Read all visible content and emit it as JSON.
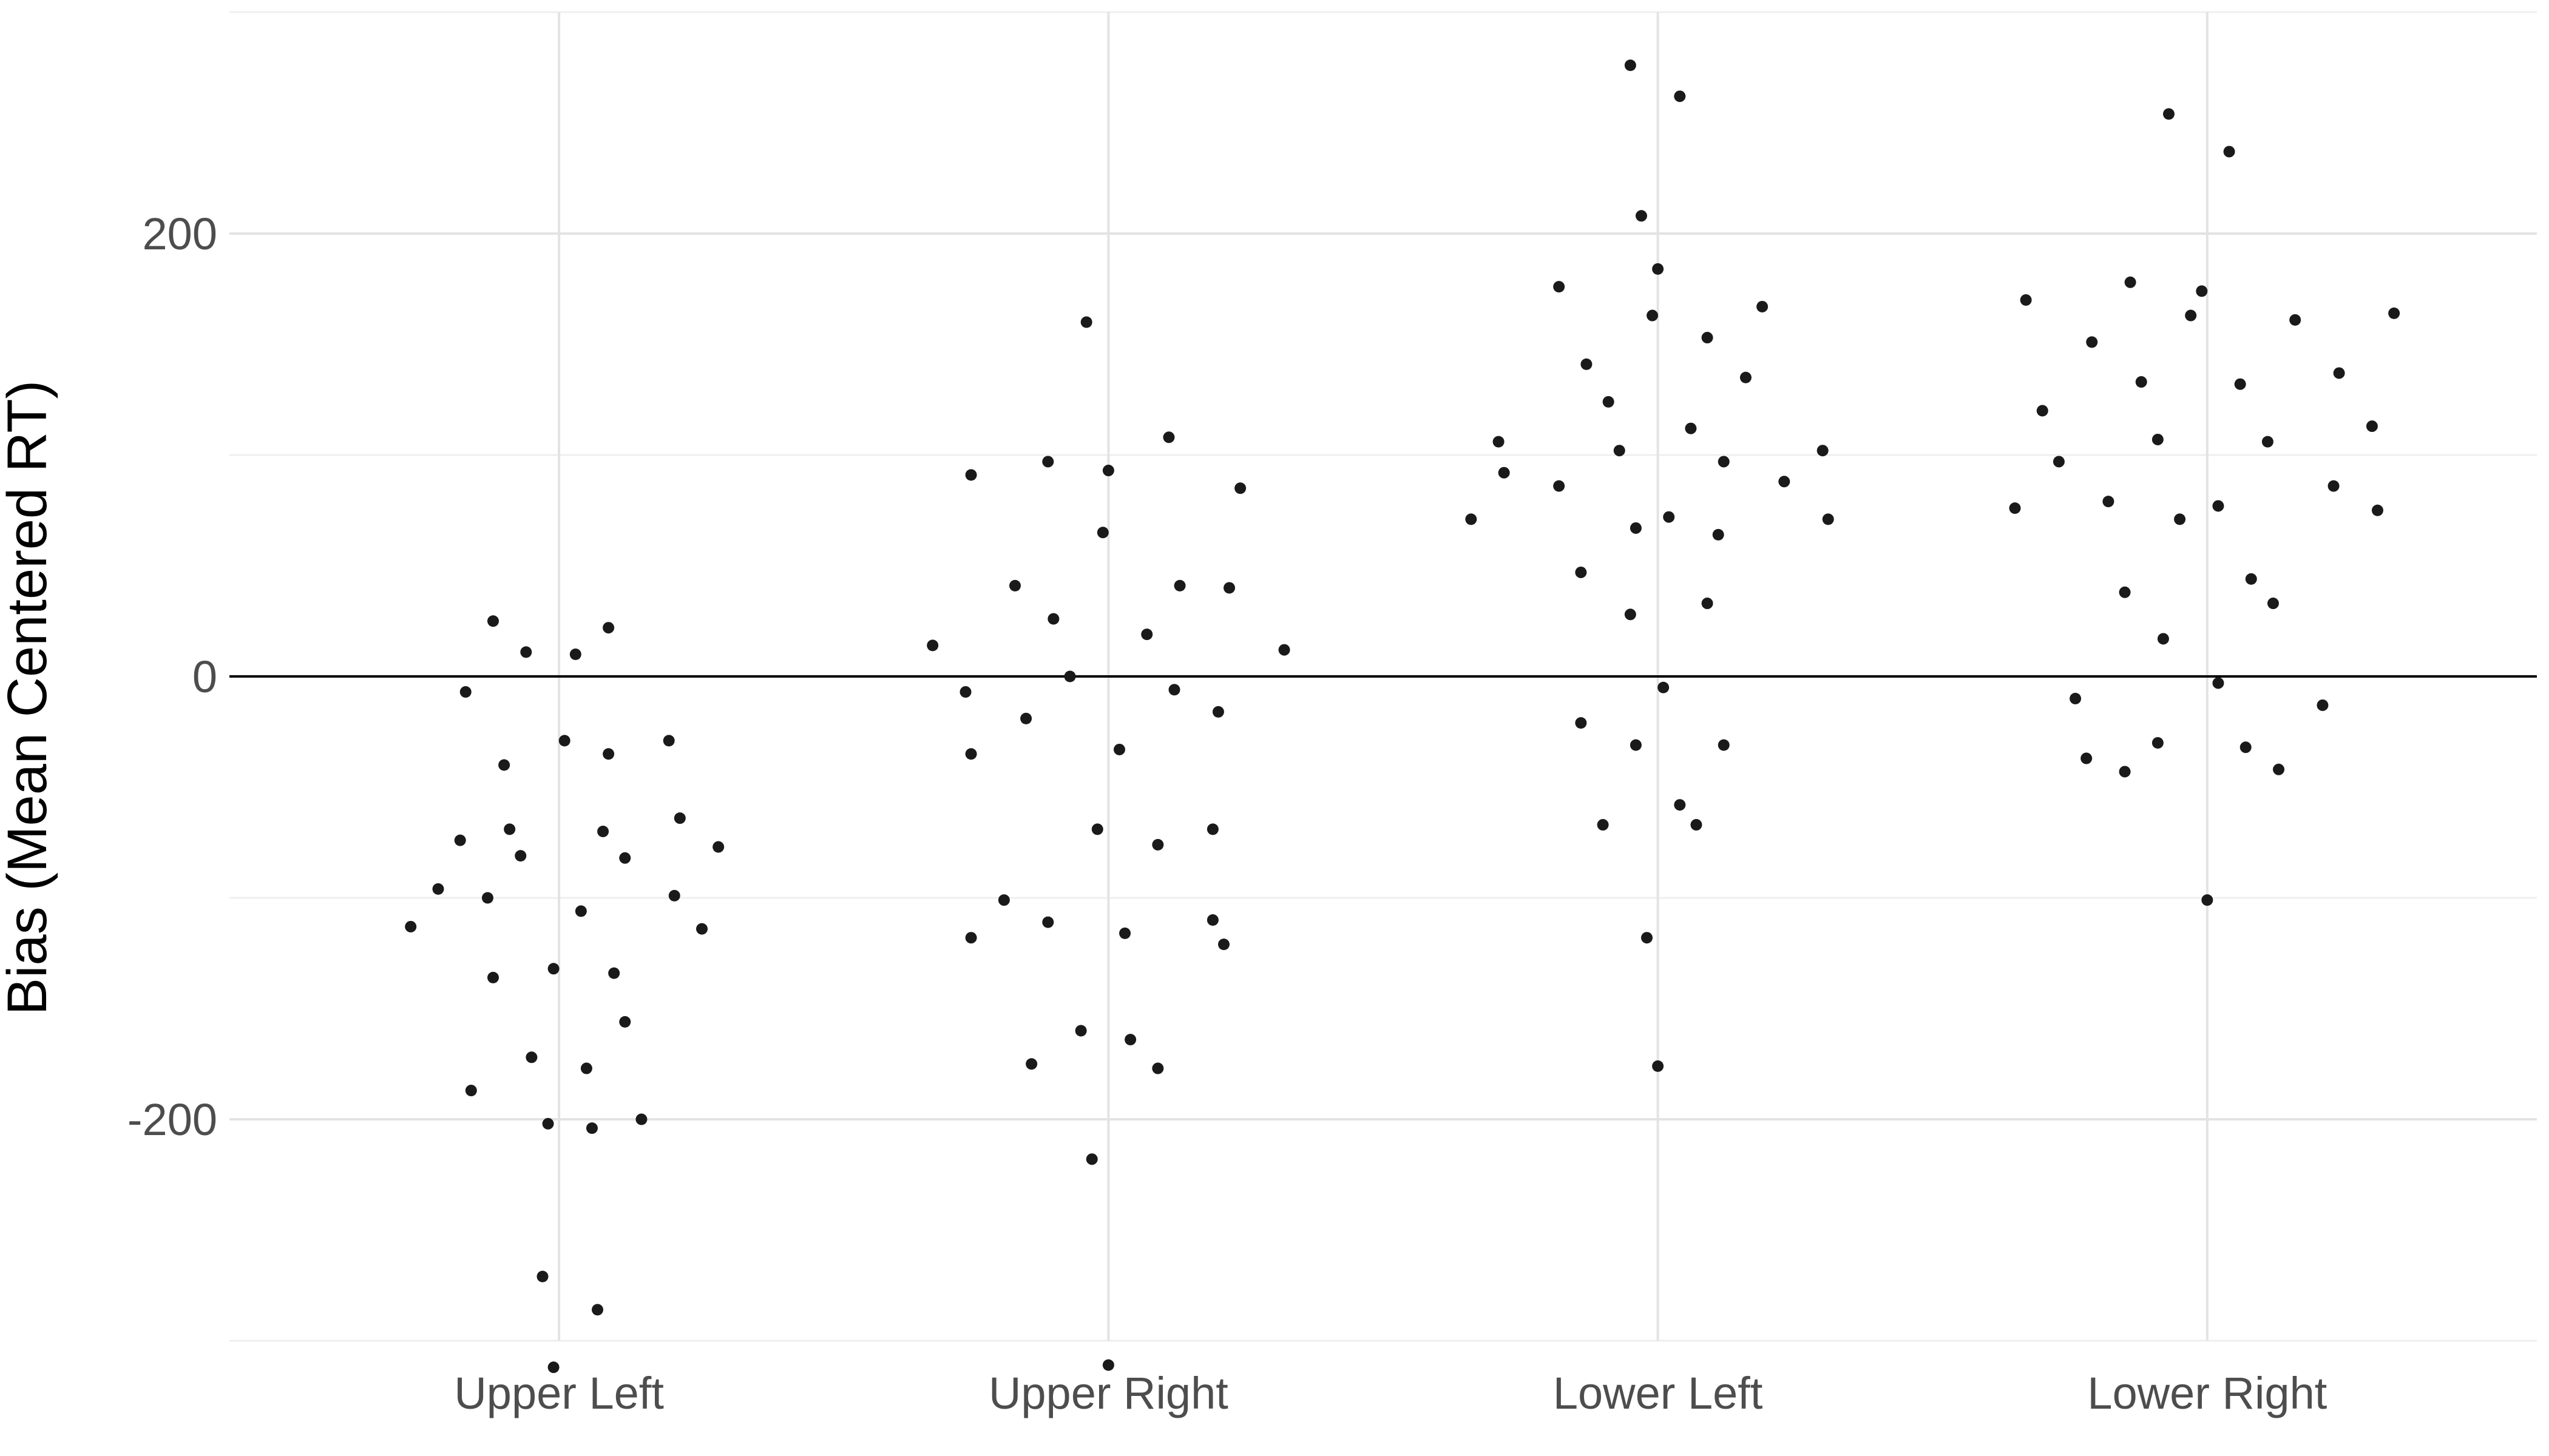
{
  "chart_data": {
    "type": "scatter",
    "title": "",
    "xlabel": "",
    "ylabel": "Bias (Mean Centered RT)",
    "categories": [
      "Upper Left",
      "Upper Right",
      "Lower Left",
      "Lower Right"
    ],
    "ylim": [
      -300,
      300
    ],
    "yticks": [
      -200,
      0,
      200
    ],
    "ytick_labels": [
      "-200",
      "0",
      "200"
    ],
    "reference_line": 0,
    "grid": true,
    "jitter": true,
    "series": [
      {
        "category": "Upper Left",
        "points": [
          [
            0.82,
            -74
          ],
          [
            0.73,
            -113
          ],
          [
            0.78,
            -96
          ],
          [
            0.84,
            -187
          ],
          [
            0.87,
            -100
          ],
          [
            0.88,
            -136
          ],
          [
            0.95,
            -172
          ],
          [
            0.93,
            -81
          ],
          [
            0.91,
            -69
          ],
          [
            0.9,
            -40
          ],
          [
            0.83,
            -7
          ],
          [
            0.88,
            25
          ],
          [
            0.94,
            11
          ],
          [
            0.98,
            -202
          ],
          [
            0.97,
            -271
          ],
          [
            0.99,
            -132
          ],
          [
            0.99,
            -312
          ],
          [
            1.03,
            10
          ],
          [
            1.01,
            -29
          ],
          [
            1.04,
            -106
          ],
          [
            1.05,
            -177
          ],
          [
            1.06,
            -204
          ],
          [
            1.07,
            -286
          ],
          [
            1.08,
            -70
          ],
          [
            1.09,
            -35
          ],
          [
            1.1,
            -134
          ],
          [
            1.12,
            -156
          ],
          [
            1.12,
            -82
          ],
          [
            1.15,
            -200
          ],
          [
            1.2,
            -29
          ],
          [
            1.21,
            -99
          ],
          [
            1.22,
            -64
          ],
          [
            1.26,
            -114
          ],
          [
            1.29,
            -77
          ],
          [
            1.09,
            22
          ]
        ]
      },
      {
        "category": "Upper Right",
        "points": [
          [
            1.68,
            14
          ],
          [
            1.74,
            -7
          ],
          [
            1.75,
            -35
          ],
          [
            1.75,
            -118
          ],
          [
            1.75,
            91
          ],
          [
            1.81,
            -101
          ],
          [
            1.83,
            41
          ],
          [
            1.85,
            -19
          ],
          [
            1.86,
            -175
          ],
          [
            1.89,
            -111
          ],
          [
            1.89,
            97
          ],
          [
            1.9,
            26
          ],
          [
            1.93,
            0
          ],
          [
            1.95,
            -160
          ],
          [
            1.96,
            160
          ],
          [
            1.97,
            -218
          ],
          [
            1.98,
            -69
          ],
          [
            1.99,
            65
          ],
          [
            2.0,
            93
          ],
          [
            2.0,
            -311
          ],
          [
            2.02,
            -33
          ],
          [
            2.03,
            -116
          ],
          [
            2.04,
            -164
          ],
          [
            2.07,
            19
          ],
          [
            2.09,
            -76
          ],
          [
            2.09,
            -177
          ],
          [
            2.11,
            108
          ],
          [
            2.12,
            -6
          ],
          [
            2.13,
            41
          ],
          [
            2.19,
            -110
          ],
          [
            2.19,
            -69
          ],
          [
            2.2,
            -16
          ],
          [
            2.21,
            -121
          ],
          [
            2.22,
            40
          ],
          [
            2.24,
            85
          ],
          [
            2.32,
            12
          ]
        ]
      },
      {
        "category": "Lower Left",
        "points": [
          [
            2.66,
            71
          ],
          [
            2.71,
            106
          ],
          [
            2.72,
            92
          ],
          [
            2.82,
            176
          ],
          [
            2.82,
            86
          ],
          [
            2.86,
            47
          ],
          [
            2.86,
            -21
          ],
          [
            2.87,
            141
          ],
          [
            2.9,
            -67
          ],
          [
            2.91,
            124
          ],
          [
            2.93,
            102
          ],
          [
            2.95,
            28
          ],
          [
            2.95,
            276
          ],
          [
            2.96,
            67
          ],
          [
            2.96,
            -31
          ],
          [
            2.97,
            208
          ],
          [
            2.98,
            -118
          ],
          [
            2.99,
            163
          ],
          [
            3.0,
            -176
          ],
          [
            3.0,
            184
          ],
          [
            3.01,
            -5
          ],
          [
            3.02,
            72
          ],
          [
            3.04,
            -58
          ],
          [
            3.04,
            262
          ],
          [
            3.06,
            112
          ],
          [
            3.07,
            -67
          ],
          [
            3.09,
            153
          ],
          [
            3.09,
            33
          ],
          [
            3.11,
            64
          ],
          [
            3.12,
            97
          ],
          [
            3.12,
            -31
          ],
          [
            3.16,
            135
          ],
          [
            3.19,
            167
          ],
          [
            3.23,
            88
          ],
          [
            3.3,
            102
          ],
          [
            3.31,
            71
          ]
        ]
      },
      {
        "category": "Lower Right",
        "points": [
          [
            3.65,
            76
          ],
          [
            3.67,
            170
          ],
          [
            3.7,
            120
          ],
          [
            3.73,
            97
          ],
          [
            3.76,
            -10
          ],
          [
            3.78,
            -37
          ],
          [
            3.79,
            151
          ],
          [
            3.82,
            79
          ],
          [
            3.85,
            38
          ],
          [
            3.85,
            -43
          ],
          [
            3.86,
            178
          ],
          [
            3.88,
            133
          ],
          [
            3.91,
            107
          ],
          [
            3.91,
            -30
          ],
          [
            3.92,
            17
          ],
          [
            3.93,
            254
          ],
          [
            3.95,
            71
          ],
          [
            3.97,
            163
          ],
          [
            3.99,
            174
          ],
          [
            4.02,
            77
          ],
          [
            4.02,
            -3
          ],
          [
            4.04,
            237
          ],
          [
            4.06,
            132
          ],
          [
            4.07,
            -32
          ],
          [
            4.08,
            44
          ],
          [
            4.11,
            106
          ],
          [
            4.12,
            33
          ],
          [
            4.13,
            -42
          ],
          [
            4.16,
            161
          ],
          [
            4.21,
            -13
          ],
          [
            4.23,
            86
          ],
          [
            4.24,
            137
          ],
          [
            4.3,
            113
          ],
          [
            4.31,
            75
          ],
          [
            4.34,
            164
          ],
          [
            4.0,
            -101
          ]
        ]
      }
    ]
  }
}
